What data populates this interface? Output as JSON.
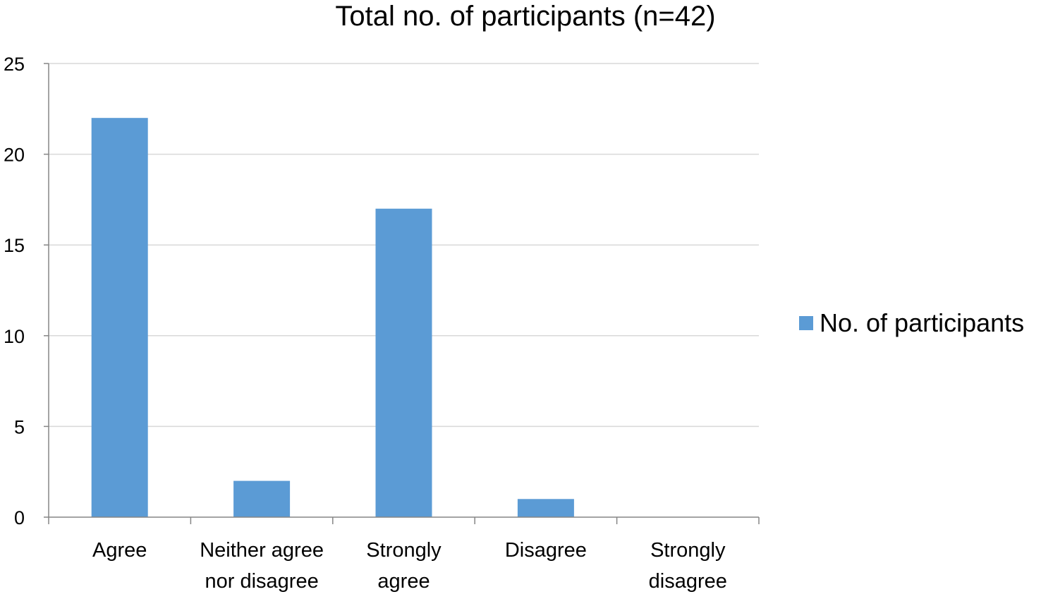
{
  "chart_data": {
    "type": "bar",
    "title": "Total no. of participants (n=42)",
    "xlabel": "",
    "ylabel": "",
    "categories": [
      "Agree",
      "Neither agree nor disagree",
      "Strongly agree",
      "Disagree",
      "Strongly disagree"
    ],
    "category_lines": [
      [
        "Agree"
      ],
      [
        "Neither agree",
        "nor disagree"
      ],
      [
        "Strongly",
        "agree"
      ],
      [
        "Disagree"
      ],
      [
        "Strongly",
        "disagree"
      ]
    ],
    "series": [
      {
        "name": "No. of participants",
        "values": [
          22,
          2,
          17,
          1,
          0
        ],
        "color": "#5B9BD5"
      }
    ],
    "ylim": [
      0,
      25
    ],
    "yticks": [
      0,
      5,
      10,
      15,
      20,
      25
    ],
    "grid": true,
    "gridline_color": "#d9d9d9",
    "axis_color": "#868686",
    "legend_position": "right"
  }
}
